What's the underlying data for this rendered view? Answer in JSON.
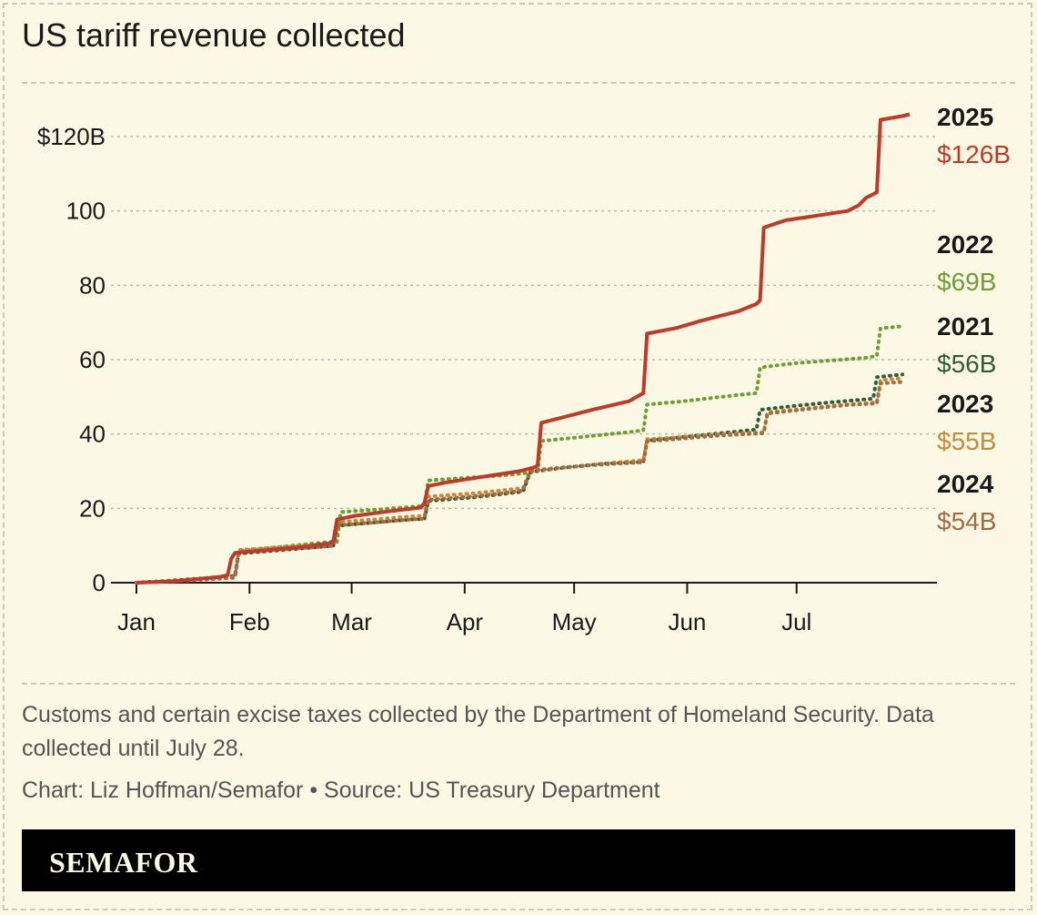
{
  "chart_data": {
    "type": "line",
    "title": "US tariff revenue collected",
    "xlabel": "",
    "ylabel": "",
    "x_ticks": [
      "Jan",
      "Feb",
      "Mar",
      "Apr",
      "May",
      "Jun",
      "Jul"
    ],
    "y_ticks": [
      "0",
      "20",
      "40",
      "60",
      "80",
      "100",
      "$120B"
    ],
    "y_tick_values": [
      0,
      20,
      40,
      60,
      80,
      100,
      120
    ],
    "xlim": [
      0,
      212
    ],
    "ylim": [
      0,
      120
    ],
    "grid": true,
    "series": [
      {
        "name": "2022",
        "label": "$69B",
        "color": "#6f9e36",
        "style": "dotted",
        "points": [
          [
            0,
            0
          ],
          [
            10,
            0.5
          ],
          [
            20,
            1.2
          ],
          [
            27,
            1.8
          ],
          [
            28,
            8.6
          ],
          [
            35,
            9.2
          ],
          [
            45,
            10.2
          ],
          [
            52,
            10.9
          ],
          [
            55,
            11
          ],
          [
            56,
            19
          ],
          [
            65,
            19.6
          ],
          [
            78,
            20.6
          ],
          [
            79,
            21
          ],
          [
            80,
            27.5
          ],
          [
            90,
            28.2
          ],
          [
            100,
            28.8
          ],
          [
            108,
            29.6
          ],
          [
            110,
            30
          ],
          [
            111,
            38.1
          ],
          [
            120,
            39
          ],
          [
            135,
            40.5
          ],
          [
            139,
            41
          ],
          [
            140,
            47.9
          ],
          [
            150,
            48.8
          ],
          [
            165,
            50.5
          ],
          [
            170,
            51
          ],
          [
            171,
            57.9
          ],
          [
            180,
            59
          ],
          [
            200,
            60.5
          ],
          [
            203,
            61
          ],
          [
            204,
            68.4
          ],
          [
            210,
            69
          ]
        ]
      },
      {
        "name": "2021",
        "label": "$56B",
        "color": "#2f5e38",
        "style": "dotted",
        "points": [
          [
            0,
            0
          ],
          [
            10,
            0.6
          ],
          [
            20,
            1.3
          ],
          [
            27,
            1.8
          ],
          [
            28,
            7.8
          ],
          [
            40,
            8.8
          ],
          [
            50,
            9.6
          ],
          [
            54,
            10
          ],
          [
            55,
            15.3
          ],
          [
            65,
            16.2
          ],
          [
            75,
            17
          ],
          [
            79,
            17.2
          ],
          [
            80,
            22
          ],
          [
            92,
            22.9
          ],
          [
            100,
            23.8
          ],
          [
            106,
            24.5
          ],
          [
            108,
            29.8
          ],
          [
            118,
            31
          ],
          [
            128,
            32
          ],
          [
            139,
            32.5
          ],
          [
            140,
            38.2
          ],
          [
            150,
            39.2
          ],
          [
            160,
            40.2
          ],
          [
            170,
            41.2
          ],
          [
            171,
            46.5
          ],
          [
            180,
            47.5
          ],
          [
            190,
            48.5
          ],
          [
            202,
            49.5
          ],
          [
            203,
            55.3
          ],
          [
            210,
            56
          ]
        ]
      },
      {
        "name": "2023",
        "label": "$55B",
        "color": "#c98a3a",
        "style": "dotted",
        "points": [
          [
            0,
            0
          ],
          [
            10,
            0.5
          ],
          [
            20,
            1
          ],
          [
            27,
            1.5
          ],
          [
            28,
            8.8
          ],
          [
            40,
            9.6
          ],
          [
            50,
            10.2
          ],
          [
            54,
            10.5
          ],
          [
            55,
            16.3
          ],
          [
            65,
            17
          ],
          [
            75,
            17.8
          ],
          [
            79,
            18
          ],
          [
            80,
            23.2
          ],
          [
            92,
            24
          ],
          [
            100,
            24.8
          ],
          [
            106,
            25.5
          ],
          [
            108,
            30
          ],
          [
            118,
            31
          ],
          [
            128,
            32
          ],
          [
            139,
            33
          ],
          [
            140,
            38.6
          ],
          [
            150,
            39.2
          ],
          [
            160,
            40
          ],
          [
            172,
            40.5
          ],
          [
            173,
            45.8
          ],
          [
            185,
            47
          ],
          [
            195,
            48
          ],
          [
            203,
            48.5
          ],
          [
            204,
            54.5
          ],
          [
            210,
            55
          ]
        ]
      },
      {
        "name": "2024",
        "label": "$54B",
        "color": "#a86a42",
        "style": "dotted",
        "points": [
          [
            0,
            0
          ],
          [
            10,
            0.4
          ],
          [
            20,
            0.9
          ],
          [
            27,
            1.3
          ],
          [
            28,
            8.2
          ],
          [
            40,
            9
          ],
          [
            50,
            9.6
          ],
          [
            54,
            9.9
          ],
          [
            55,
            15.4
          ],
          [
            65,
            16.2
          ],
          [
            75,
            17
          ],
          [
            79,
            17.2
          ],
          [
            80,
            22.3
          ],
          [
            92,
            23.2
          ],
          [
            100,
            24
          ],
          [
            106,
            24.8
          ],
          [
            108,
            30.2
          ],
          [
            118,
            31.1
          ],
          [
            128,
            31.8
          ],
          [
            139,
            32.4
          ],
          [
            140,
            38
          ],
          [
            150,
            38.8
          ],
          [
            160,
            39.6
          ],
          [
            172,
            40.2
          ],
          [
            173,
            45.5
          ],
          [
            185,
            46.8
          ],
          [
            195,
            47.8
          ],
          [
            203,
            48.2
          ],
          [
            204,
            53.6
          ],
          [
            210,
            54
          ]
        ]
      }
    ],
    "highlight_series": {
      "name": "2025",
      "label": "$126B",
      "color": "#c03a2b",
      "style": "solid",
      "points": [
        [
          0,
          0
        ],
        [
          10,
          0.4
        ],
        [
          20,
          1.3
        ],
        [
          23,
          1.6
        ],
        [
          25,
          2
        ],
        [
          26,
          6.5
        ],
        [
          27,
          8
        ],
        [
          35,
          8.7
        ],
        [
          45,
          9.6
        ],
        [
          53,
          10.6
        ],
        [
          54,
          11.3
        ],
        [
          55,
          17
        ],
        [
          60,
          18
        ],
        [
          70,
          19.3
        ],
        [
          78,
          20.2
        ],
        [
          79,
          21.5
        ],
        [
          80,
          26
        ],
        [
          85,
          27
        ],
        [
          95,
          28.5
        ],
        [
          105,
          30
        ],
        [
          109,
          31
        ],
        [
          110,
          31.5
        ],
        [
          111,
          43
        ],
        [
          117,
          44.5
        ],
        [
          125,
          46.5
        ],
        [
          135,
          48.8
        ],
        [
          139,
          51
        ],
        [
          140,
          67
        ],
        [
          148,
          68.5
        ],
        [
          155,
          70.5
        ],
        [
          165,
          73
        ],
        [
          170,
          75
        ],
        [
          171,
          76
        ],
        [
          172,
          95.5
        ],
        [
          178,
          97.5
        ],
        [
          185,
          98.5
        ],
        [
          195,
          100
        ],
        [
          198,
          101.5
        ],
        [
          200,
          103.5
        ],
        [
          203,
          105
        ],
        [
          204,
          124.5
        ],
        [
          210,
          125.5
        ],
        [
          212,
          126
        ]
      ]
    }
  },
  "description": "Customs and certain excise taxes collected by the Department of Homeland Security. Data collected until July 28.",
  "credit": "Chart: Liz Hoffman/Semafor • Source: US Treasury Department",
  "brand": "SEMAFOR",
  "colors": {
    "background": "#fbf8e3",
    "grid": "#bdbaa5"
  }
}
